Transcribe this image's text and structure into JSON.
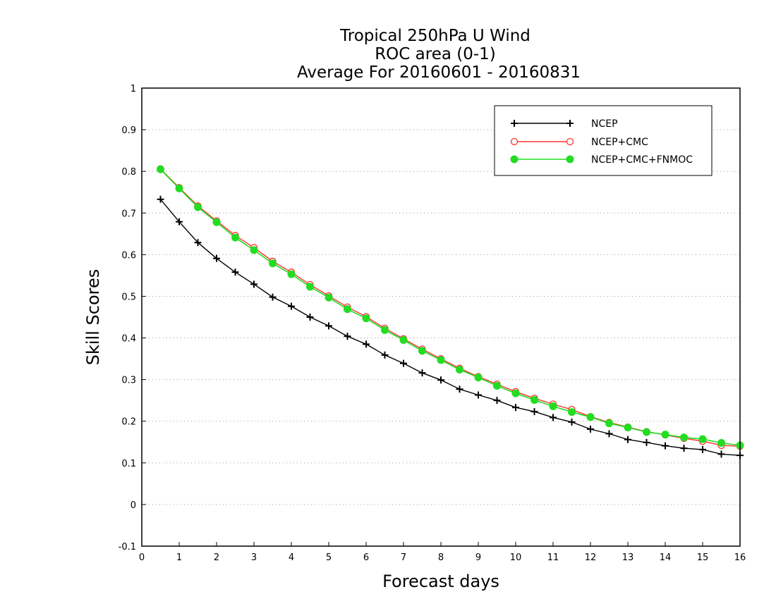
{
  "chart_data": {
    "type": "line",
    "title_lines": [
      "Tropical 250hPa U Wind",
      "ROC area (0-1)",
      "Average For 20160601 - 20160831"
    ],
    "xlabel": "Forecast days",
    "ylabel": "Skill Scores",
    "xlim": [
      0,
      16
    ],
    "ylim": [
      -0.1,
      1
    ],
    "xticks": [
      0,
      1,
      2,
      3,
      4,
      5,
      6,
      7,
      8,
      9,
      10,
      11,
      12,
      13,
      14,
      15,
      16
    ],
    "xtick_labels": [
      "0",
      "1",
      "2",
      "3",
      "4",
      "5",
      "6",
      "7",
      "8",
      "9",
      "10",
      "11",
      "12",
      "13",
      "14",
      "15",
      "16"
    ],
    "yticks": [
      -0.1,
      0,
      0.1,
      0.2,
      0.3,
      0.4,
      0.5,
      0.6,
      0.7,
      0.8,
      0.9,
      1
    ],
    "ytick_labels": [
      "-0.1",
      "0",
      "0.1",
      "0.2",
      "0.3",
      "0.4",
      "0.5",
      "0.6",
      "0.7",
      "0.8",
      "0.9",
      "1"
    ],
    "grid": "horizontal dotted",
    "legend_position": "top-right",
    "x": [
      0.5,
      1,
      1.5,
      2,
      2.5,
      3,
      3.5,
      4,
      4.5,
      5,
      5.5,
      6,
      6.5,
      7,
      7.5,
      8,
      8.5,
      9,
      9.5,
      10,
      10.5,
      11,
      11.5,
      12,
      12.5,
      13,
      13.5,
      14,
      14.5,
      15,
      15.5,
      16
    ],
    "series": [
      {
        "name": "NCEP",
        "color": "#000000",
        "marker": "plus",
        "values": [
          0.733,
          0.679,
          0.629,
          0.591,
          0.558,
          0.529,
          0.498,
          0.476,
          0.45,
          0.429,
          0.404,
          0.385,
          0.359,
          0.339,
          0.316,
          0.299,
          0.277,
          0.263,
          0.25,
          0.233,
          0.223,
          0.209,
          0.198,
          0.181,
          0.17,
          0.156,
          0.149,
          0.141,
          0.135,
          0.132,
          0.121,
          0.118
        ]
      },
      {
        "name": "NCEP+CMC",
        "color": "#ff3333",
        "marker": "open-circle",
        "values": [
          0.806,
          0.761,
          0.717,
          0.681,
          0.646,
          0.617,
          0.584,
          0.558,
          0.528,
          0.501,
          0.474,
          0.451,
          0.423,
          0.398,
          0.373,
          0.35,
          0.327,
          0.307,
          0.289,
          0.271,
          0.255,
          0.241,
          0.228,
          0.211,
          0.197,
          0.186,
          0.175,
          0.167,
          0.159,
          0.152,
          0.142,
          0.14
        ]
      },
      {
        "name": "NCEP+CMC+FNMOC",
        "color": "#22dd22",
        "marker": "filled-circle",
        "values": [
          0.805,
          0.759,
          0.714,
          0.678,
          0.641,
          0.611,
          0.579,
          0.553,
          0.523,
          0.497,
          0.469,
          0.447,
          0.419,
          0.395,
          0.369,
          0.347,
          0.324,
          0.305,
          0.285,
          0.267,
          0.251,
          0.236,
          0.222,
          0.21,
          0.195,
          0.185,
          0.174,
          0.168,
          0.161,
          0.157,
          0.148,
          0.142
        ]
      }
    ]
  }
}
